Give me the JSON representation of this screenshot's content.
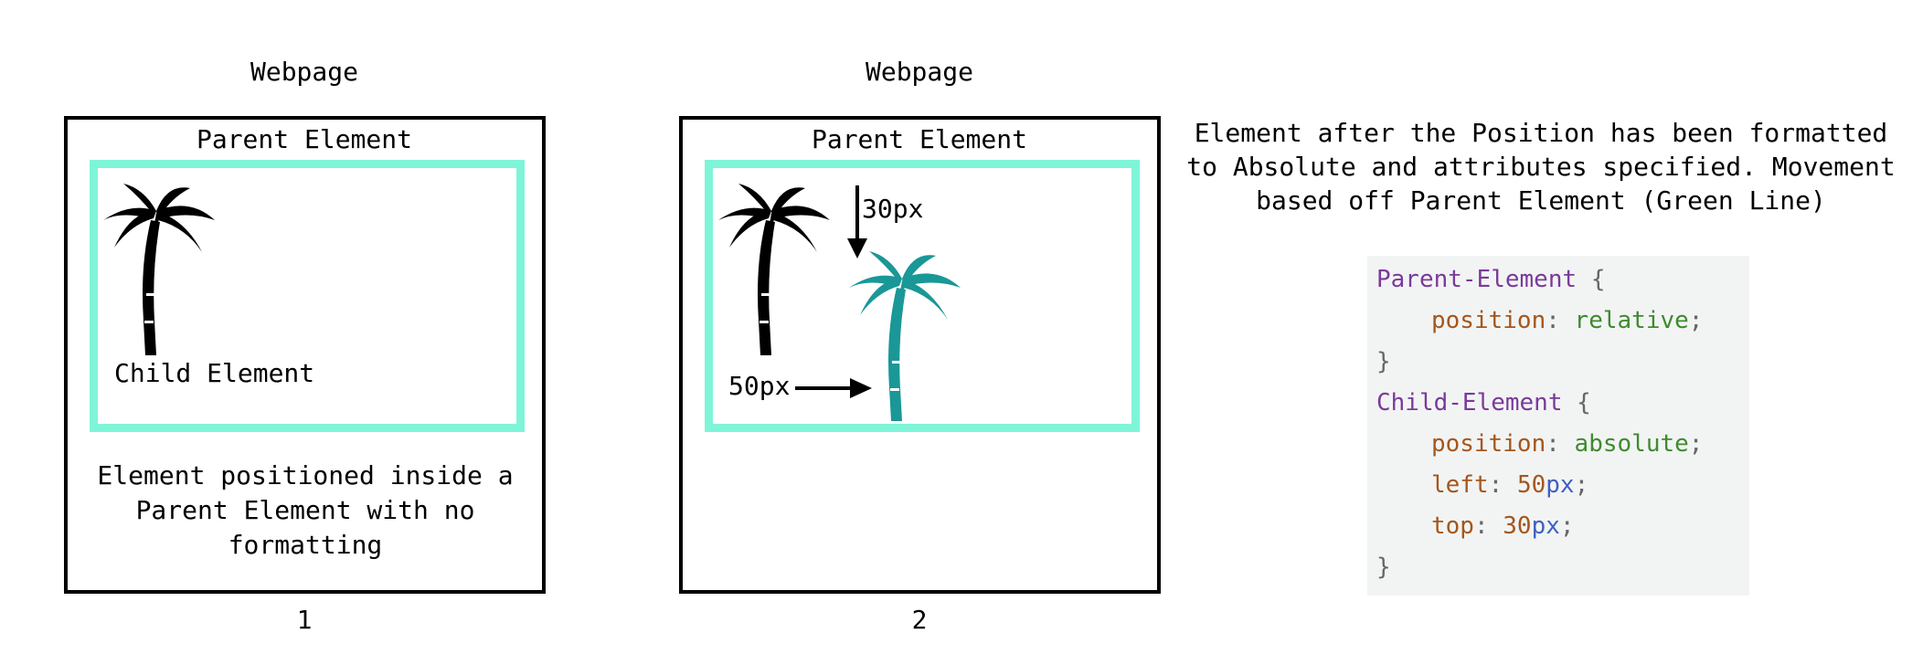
{
  "panel1": {
    "title": "Webpage",
    "parent_label": "Parent Element",
    "child_label": "Child Element",
    "description": "Element positioned inside a Parent Element with no formatting",
    "number": "1"
  },
  "panel2": {
    "title": "Webpage",
    "parent_label": "Parent Element",
    "top_label": "30px",
    "left_label": "50px",
    "number": "2"
  },
  "explanation": "Element after the Position has been formatted to Absolute and attributes specified. Movement based off Parent Element (Green Line)",
  "code": {
    "parent_selector": "Parent-Element",
    "open_brace": "{",
    "close_brace": "}",
    "parent_prop": "position",
    "parent_value": "relative",
    "child_selector": "Child-Element",
    "child_prop": "position",
    "child_value": "absolute",
    "left_prop": "left",
    "left_num": "50",
    "top_prop": "top",
    "top_num": "30",
    "unit": "px",
    "colon": ":",
    "semicolon": ";"
  },
  "colors": {
    "parent_border": "#7ff5d8",
    "palm_original": "#000000",
    "palm_moved": "#1a9797",
    "selector": "#7a3a9a",
    "property": "#a5561c",
    "value": "#3f8a2e",
    "unit": "#3f5fc0"
  },
  "icons": [
    "palm-tree-icon",
    "arrow-down-icon",
    "arrow-right-icon"
  ]
}
